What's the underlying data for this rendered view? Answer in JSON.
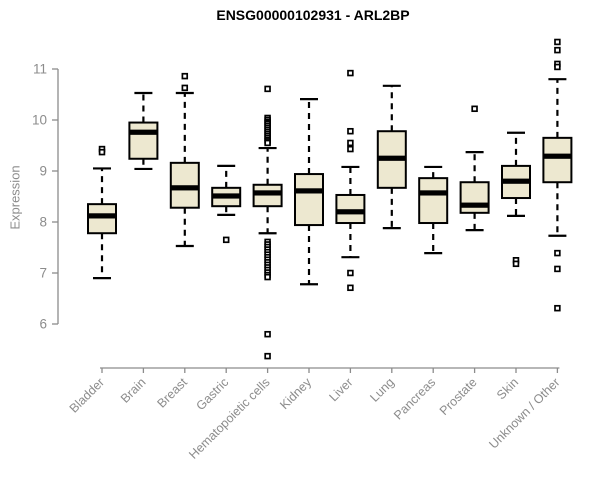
{
  "chart_data": {
    "type": "boxplot",
    "title": "ENSG00000102931 - ARL2BP",
    "xlabel": "",
    "ylabel": "Expression",
    "ylim": [
      6,
      11
    ],
    "yticks": [
      6,
      7,
      8,
      9,
      10,
      11
    ],
    "grid": false,
    "legend": "none",
    "categories": [
      "Bladder",
      "Brain",
      "Breast",
      "Gastric",
      "Hematopoietic cells",
      "Kidney",
      "Liver",
      "Lung",
      "Pancreas",
      "Prostate",
      "Skin",
      "Unknown / Other"
    ],
    "boxes": [
      {
        "category": "Bladder",
        "whisker_low": 6.9,
        "q1": 7.78,
        "median": 8.12,
        "q3": 8.35,
        "whisker_high": 9.05,
        "outliers": [
          9.43,
          9.37
        ]
      },
      {
        "category": "Brain",
        "whisker_low": 9.04,
        "q1": 9.24,
        "median": 9.76,
        "q3": 9.95,
        "whisker_high": 10.53,
        "outliers": []
      },
      {
        "category": "Breast",
        "whisker_low": 7.53,
        "q1": 8.28,
        "median": 8.67,
        "q3": 9.16,
        "whisker_high": 10.53,
        "outliers": [
          10.86,
          10.63
        ]
      },
      {
        "category": "Gastric",
        "whisker_low": 8.14,
        "q1": 8.31,
        "median": 8.51,
        "q3": 8.67,
        "whisker_high": 9.1,
        "outliers": [
          7.65
        ]
      },
      {
        "category": "Hematopoietic cells",
        "whisker_low": 7.78,
        "q1": 8.31,
        "median": 8.57,
        "q3": 8.73,
        "whisker_high": 9.45,
        "outliers": [
          10.61,
          10.04,
          10.0,
          9.96,
          9.93,
          9.89,
          9.85,
          9.81,
          9.77,
          9.73,
          9.69,
          9.65,
          9.61,
          9.58,
          9.55,
          7.61,
          7.56,
          7.51,
          7.46,
          7.41,
          7.36,
          7.31,
          7.26,
          7.21,
          7.16,
          7.11,
          7.06,
          7.01,
          6.96,
          6.92,
          5.8,
          5.37
        ]
      },
      {
        "category": "Kidney",
        "whisker_low": 6.78,
        "q1": 7.94,
        "median": 8.61,
        "q3": 8.94,
        "whisker_high": 10.41,
        "outliers": []
      },
      {
        "category": "Liver",
        "whisker_low": 7.31,
        "q1": 7.98,
        "median": 8.2,
        "q3": 8.53,
        "whisker_high": 9.08,
        "outliers": [
          10.92,
          9.78,
          9.55,
          9.43,
          7.0,
          6.71
        ]
      },
      {
        "category": "Lung",
        "whisker_low": 7.88,
        "q1": 8.67,
        "median": 9.25,
        "q3": 9.78,
        "whisker_high": 10.67,
        "outliers": []
      },
      {
        "category": "Pancreas",
        "whisker_low": 7.39,
        "q1": 7.98,
        "median": 8.57,
        "q3": 8.86,
        "whisker_high": 9.08,
        "outliers": []
      },
      {
        "category": "Prostate",
        "whisker_low": 7.84,
        "q1": 8.18,
        "median": 8.33,
        "q3": 8.78,
        "whisker_high": 9.37,
        "outliers": [
          10.22
        ]
      },
      {
        "category": "Skin",
        "whisker_low": 8.12,
        "q1": 8.47,
        "median": 8.8,
        "q3": 9.1,
        "whisker_high": 9.75,
        "outliers": [
          7.25,
          7.18
        ]
      },
      {
        "category": "Unknown / Other",
        "whisker_low": 7.73,
        "q1": 8.78,
        "median": 9.29,
        "q3": 9.65,
        "whisker_high": 10.8,
        "outliers": [
          11.53,
          11.37,
          11.1,
          11.04,
          7.39,
          7.08,
          6.31
        ]
      }
    ],
    "colors": {
      "box_fill": "#ede8d0",
      "box_border": "#000000",
      "median": "#000000",
      "axis": "#8c8c8c",
      "tick_label": "#8c8c8c",
      "title": "#000000",
      "background": "#ffffff"
    }
  }
}
